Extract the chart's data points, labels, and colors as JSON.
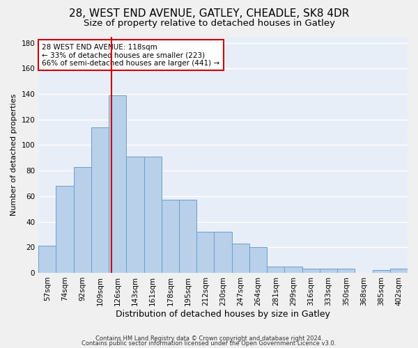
{
  "title1": "28, WEST END AVENUE, GATLEY, CHEADLE, SK8 4DR",
  "title2": "Size of property relative to detached houses in Gatley",
  "xlabel": "Distribution of detached houses by size in Gatley",
  "ylabel": "Number of detached properties",
  "categories": [
    "57sqm",
    "74sqm",
    "92sqm",
    "109sqm",
    "126sqm",
    "143sqm",
    "161sqm",
    "178sqm",
    "195sqm",
    "212sqm",
    "230sqm",
    "247sqm",
    "264sqm",
    "281sqm",
    "299sqm",
    "316sqm",
    "333sqm",
    "350sqm",
    "368sqm",
    "385sqm",
    "402sqm"
  ],
  "values": [
    21,
    68,
    83,
    114,
    139,
    91,
    91,
    57,
    57,
    32,
    32,
    23,
    20,
    5,
    5,
    3,
    3,
    3,
    0,
    2,
    3
  ],
  "bar_color": "#b8d0ea",
  "bar_edge_color": "#6a9fc8",
  "background_color": "#e8eef8",
  "grid_color": "#ffffff",
  "vline_x": 3.65,
  "vline_color": "#cc0000",
  "annotation_line1": "28 WEST END AVENUE: 118sqm",
  "annotation_line2": "← 33% of detached houses are smaller (223)",
  "annotation_line3": "66% of semi-detached houses are larger (441) →",
  "annotation_box_color": "#ffffff",
  "annotation_box_edge_color": "#cc0000",
  "ylim": [
    0,
    185
  ],
  "yticks": [
    0,
    20,
    40,
    60,
    80,
    100,
    120,
    140,
    160,
    180
  ],
  "footer1": "Contains HM Land Registry data © Crown copyright and database right 2024.",
  "footer2": "Contains public sector information licensed under the Open Government Licence v3.0.",
  "title1_fontsize": 11,
  "title2_fontsize": 9.5,
  "xlabel_fontsize": 9,
  "ylabel_fontsize": 8,
  "tick_fontsize": 7.5,
  "annotation_fontsize": 7.5,
  "footer_fontsize": 6
}
